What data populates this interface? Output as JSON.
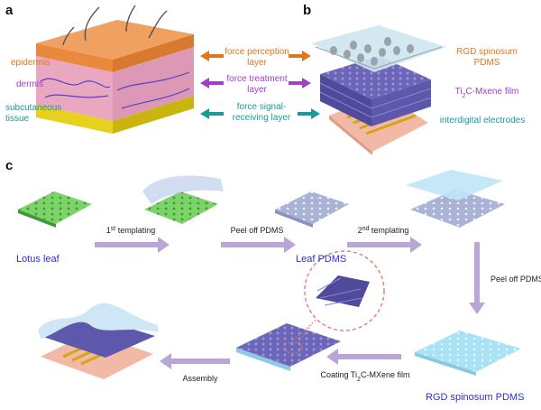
{
  "panels": {
    "a": "a",
    "b": "b",
    "c": "c"
  },
  "skin_layers": [
    {
      "lines": [
        "epidermis"
      ]
    },
    {
      "lines": [
        "dermis"
      ]
    },
    {
      "lines": [
        "subcutaneous",
        "tissue"
      ]
    }
  ],
  "function_layers": [
    {
      "lines": [
        "force perception",
        "layer"
      ]
    },
    {
      "lines": [
        "force treatment",
        "layer"
      ]
    },
    {
      "lines": [
        "force signal-",
        "receiving layer"
      ]
    }
  ],
  "device_layers": [
    {
      "lines": [
        "RGD spinosum",
        "PDMS"
      ]
    },
    {
      "lines": [
        [
          {
            "text": "Ti"
          },
          {
            "text": "2",
            "script": "sub"
          },
          {
            "text": "C-Mxene film"
          }
        ]
      ]
    },
    {
      "lines": [
        "interdigital electrodes"
      ]
    }
  ],
  "fabrication": {
    "materials": [
      {
        "lines": [
          "Lotus leaf"
        ]
      },
      {
        "lines": [
          "Leaf PDMS"
        ]
      },
      {
        "lines": [
          "RGD spinosum PDMS"
        ]
      }
    ],
    "steps": [
      {
        "lines": [
          [
            {
              "text": "1"
            },
            {
              "text": "st",
              "script": "super"
            },
            {
              "text": " templating"
            }
          ]
        ]
      },
      {
        "lines": [
          "Peel off PDMS"
        ]
      },
      {
        "lines": [
          [
            {
              "text": "2"
            },
            {
              "text": "nd",
              "script": "super"
            },
            {
              "text": " templating"
            }
          ]
        ]
      },
      {
        "lines": [
          "Peel off PDMS"
        ]
      },
      {
        "lines": [
          [
            {
              "text": "Coating Ti"
            },
            {
              "text": "2",
              "script": "sub"
            },
            {
              "text": "C-MXene film"
            }
          ]
        ]
      },
      {
        "lines": [
          "Assembly"
        ]
      }
    ]
  }
}
